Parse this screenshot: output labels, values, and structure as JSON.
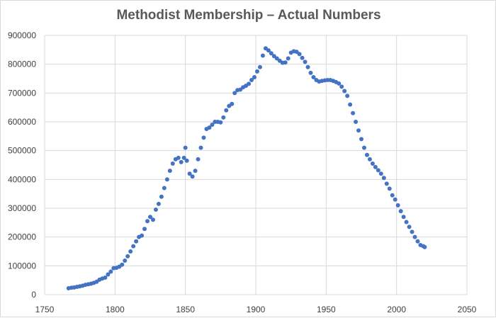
{
  "chart_data": {
    "type": "scatter",
    "title": "Methodist Membership – Actual Numbers",
    "xlabel": "",
    "ylabel": "",
    "xlim": [
      1750,
      2050
    ],
    "ylim": [
      0,
      900000
    ],
    "x_ticks": [
      1750,
      1800,
      1850,
      1900,
      1950,
      2000,
      2050
    ],
    "y_ticks": [
      0,
      100000,
      200000,
      300000,
      400000,
      500000,
      600000,
      700000,
      800000,
      900000
    ],
    "grid": true,
    "legend": "none",
    "color": "#4472c4",
    "series": [
      {
        "x": [
          1767,
          1769,
          1771,
          1773,
          1775,
          1777,
          1779,
          1781,
          1783,
          1785,
          1787,
          1789,
          1791,
          1793,
          1795,
          1797,
          1799,
          1801,
          1803,
          1805,
          1807,
          1809,
          1811,
          1813,
          1815,
          1817,
          1819,
          1821,
          1823,
          1825,
          1827,
          1829,
          1831,
          1833,
          1835,
          1837,
          1839,
          1841,
          1843,
          1845,
          1847,
          1849,
          1850,
          1851,
          1853,
          1855,
          1857,
          1859,
          1861,
          1863,
          1865,
          1867,
          1869,
          1871,
          1873,
          1875,
          1877,
          1879,
          1881,
          1883,
          1885,
          1887,
          1889,
          1891,
          1893,
          1895,
          1897,
          1899,
          1901,
          1903,
          1905,
          1907,
          1909,
          1911,
          1913,
          1915,
          1917,
          1919,
          1921,
          1923,
          1925,
          1927,
          1929,
          1931,
          1933,
          1935,
          1937,
          1939,
          1941,
          1943,
          1945,
          1947,
          1949,
          1951,
          1953,
          1955,
          1957,
          1959,
          1961,
          1963,
          1965,
          1967,
          1969,
          1971,
          1973,
          1975,
          1977,
          1979,
          1981,
          1983,
          1985,
          1987,
          1989,
          1991,
          1993,
          1995,
          1997,
          1999,
          2001,
          2003,
          2005,
          2007,
          2009,
          2011,
          2013,
          2015,
          2017,
          2019,
          2020
        ],
        "y": [
          22000,
          24000,
          25000,
          27000,
          29000,
          31000,
          34000,
          36000,
          38000,
          41000,
          45000,
          52000,
          56000,
          59000,
          70000,
          80000,
          92000,
          93000,
          97000,
          104000,
          118000,
          133000,
          150000,
          168000,
          185000,
          200000,
          205000,
          228000,
          255000,
          270000,
          260000,
          295000,
          315000,
          340000,
          370000,
          400000,
          430000,
          455000,
          470000,
          475000,
          460000,
          475000,
          510000,
          465000,
          420000,
          410000,
          430000,
          470000,
          510000,
          545000,
          575000,
          580000,
          590000,
          600000,
          600000,
          598000,
          615000,
          640000,
          655000,
          662000,
          700000,
          710000,
          712000,
          720000,
          725000,
          732000,
          745000,
          755000,
          775000,
          790000,
          830000,
          855000,
          848000,
          838000,
          828000,
          820000,
          812000,
          805000,
          806000,
          820000,
          840000,
          845000,
          843000,
          835000,
          822000,
          808000,
          790000,
          770000,
          755000,
          745000,
          740000,
          742000,
          744000,
          745000,
          745000,
          742000,
          738000,
          733000,
          722000,
          707000,
          690000,
          660000,
          630000,
          600000,
          570000,
          540000,
          510000,
          485000,
          470000,
          455000,
          443000,
          432000,
          420000,
          405000,
          385000,
          368000,
          345000,
          330000,
          310000,
          290000,
          270000,
          252000,
          235000,
          218000,
          200000,
          185000,
          172000,
          168000,
          165000
        ]
      }
    ]
  }
}
